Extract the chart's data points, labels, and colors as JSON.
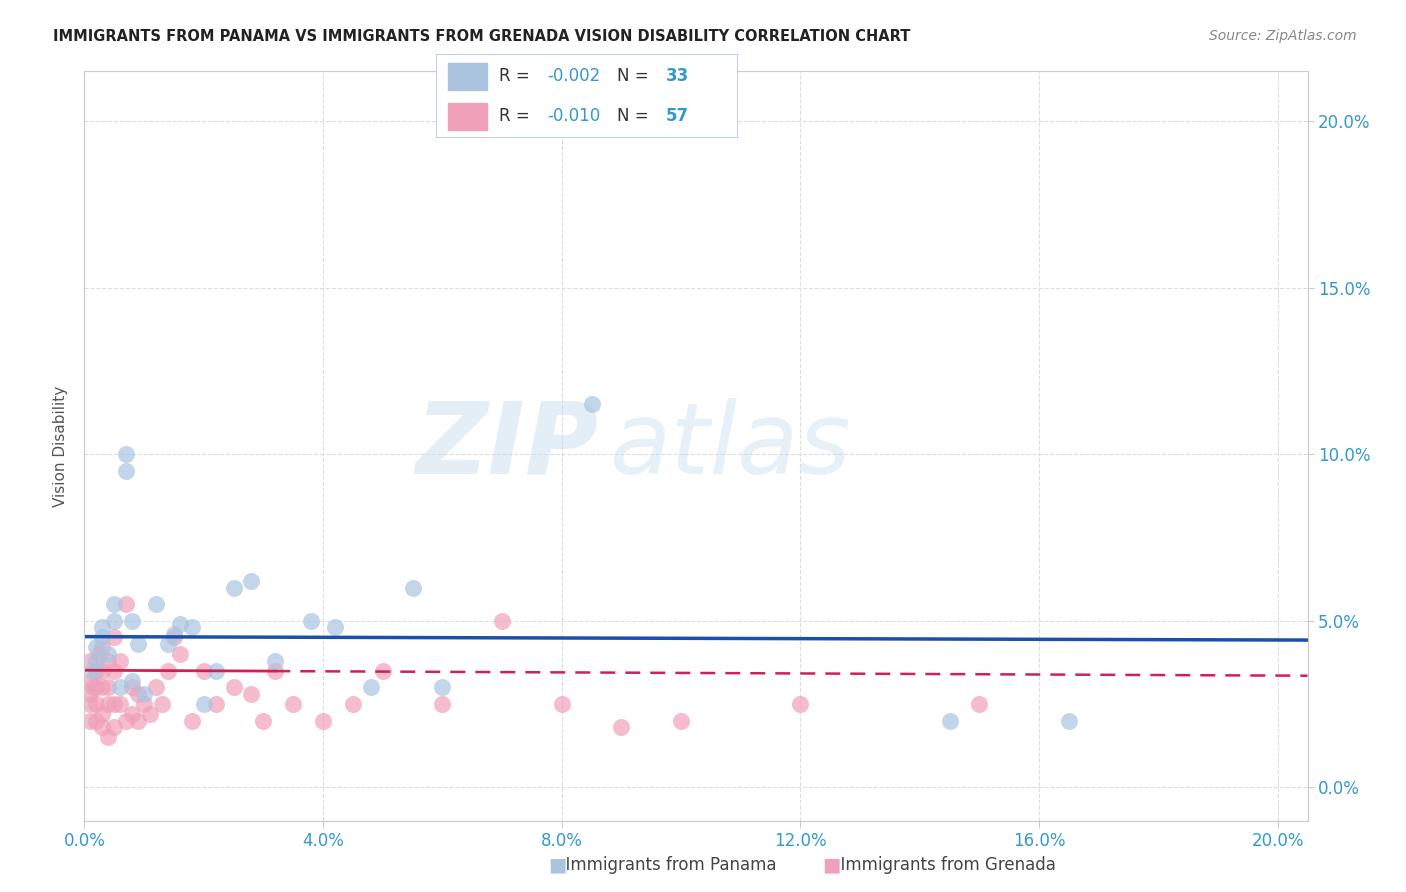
{
  "title": "IMMIGRANTS FROM PANAMA VS IMMIGRANTS FROM GRENADA VISION DISABILITY CORRELATION CHART",
  "source": "Source: ZipAtlas.com",
  "ylabel": "Vision Disability",
  "xlim": [
    0.0,
    0.205
  ],
  "ylim": [
    -0.01,
    0.215
  ],
  "xticks": [
    0.0,
    0.04,
    0.08,
    0.12,
    0.16,
    0.2
  ],
  "yticks": [
    0.0,
    0.05,
    0.1,
    0.15,
    0.2
  ],
  "xticklabels": [
    "0.0%",
    "4.0%",
    "8.0%",
    "12.0%",
    "16.0%",
    "20.0%"
  ],
  "yticklabels": [
    "0.0%",
    "5.0%",
    "10.0%",
    "15.0%",
    "20.0%"
  ],
  "panama_R": "-0.002",
  "panama_N": "33",
  "grenada_R": "-0.010",
  "grenada_N": "57",
  "panama_color": "#aac4e0",
  "grenada_color": "#f0a0b8",
  "panama_line_color": "#1a4faa",
  "grenada_line_color": "#cc2255",
  "watermark_zip": "ZIP",
  "watermark_atlas": "atlas",
  "panama_line_y": 0.045,
  "grenada_line_y": 0.035,
  "panama_x": [
    0.0015,
    0.002,
    0.002,
    0.003,
    0.003,
    0.004,
    0.005,
    0.005,
    0.006,
    0.007,
    0.007,
    0.008,
    0.008,
    0.009,
    0.01,
    0.012,
    0.014,
    0.015,
    0.016,
    0.018,
    0.02,
    0.022,
    0.025,
    0.028,
    0.032,
    0.038,
    0.042,
    0.048,
    0.055,
    0.06,
    0.085,
    0.145,
    0.165
  ],
  "panama_y": [
    0.035,
    0.038,
    0.042,
    0.045,
    0.048,
    0.04,
    0.055,
    0.05,
    0.03,
    0.095,
    0.1,
    0.05,
    0.032,
    0.043,
    0.028,
    0.055,
    0.043,
    0.046,
    0.049,
    0.048,
    0.025,
    0.035,
    0.06,
    0.062,
    0.038,
    0.05,
    0.048,
    0.03,
    0.06,
    0.03,
    0.115,
    0.02,
    0.02
  ],
  "grenada_x": [
    0.001,
    0.001,
    0.001,
    0.001,
    0.001,
    0.0015,
    0.002,
    0.002,
    0.002,
    0.002,
    0.0025,
    0.003,
    0.003,
    0.003,
    0.003,
    0.003,
    0.004,
    0.004,
    0.004,
    0.004,
    0.005,
    0.005,
    0.005,
    0.005,
    0.006,
    0.006,
    0.007,
    0.007,
    0.008,
    0.008,
    0.009,
    0.009,
    0.01,
    0.011,
    0.012,
    0.013,
    0.014,
    0.015,
    0.016,
    0.018,
    0.02,
    0.022,
    0.025,
    0.028,
    0.03,
    0.032,
    0.035,
    0.04,
    0.045,
    0.05,
    0.06,
    0.07,
    0.08,
    0.09,
    0.1,
    0.12,
    0.15
  ],
  "grenada_y": [
    0.02,
    0.025,
    0.028,
    0.032,
    0.038,
    0.03,
    0.02,
    0.025,
    0.03,
    0.035,
    0.04,
    0.018,
    0.022,
    0.03,
    0.035,
    0.042,
    0.015,
    0.025,
    0.03,
    0.038,
    0.018,
    0.025,
    0.035,
    0.045,
    0.025,
    0.038,
    0.02,
    0.055,
    0.022,
    0.03,
    0.02,
    0.028,
    0.025,
    0.022,
    0.03,
    0.025,
    0.035,
    0.045,
    0.04,
    0.02,
    0.035,
    0.025,
    0.03,
    0.028,
    0.02,
    0.035,
    0.025,
    0.02,
    0.025,
    0.035,
    0.025,
    0.05,
    0.025,
    0.018,
    0.02,
    0.025,
    0.025
  ]
}
